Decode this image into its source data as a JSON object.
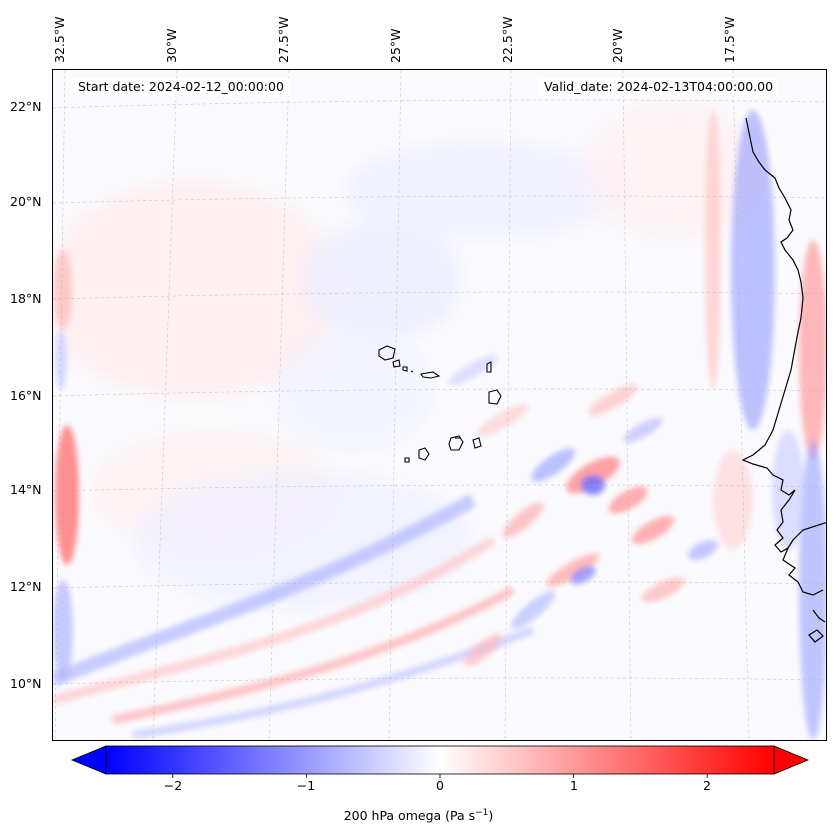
{
  "header": {
    "start_date": "Start date: 2024-02-12_00:00:00",
    "valid_date": "Valid_date: 2024-02-13T04:00:00.00"
  },
  "map": {
    "lon_labels": [
      "32.5°W",
      "30°W",
      "27.5°W",
      "25°W",
      "22.5°W",
      "20°W",
      "17.5°W"
    ],
    "lat_labels": [
      "22°N",
      "20°N",
      "18°N",
      "16°N",
      "14°N",
      "12°N",
      "10°N"
    ],
    "coastline_color": "#000000",
    "gridline_color": "#b0b0b0"
  },
  "colorbar": {
    "label_main": "200 hPa omega (Pa s",
    "label_sup": "−1",
    "label_end": ")",
    "ticks": [
      "−2",
      "−1",
      "0",
      "1",
      "2"
    ],
    "tick_values": [
      -2,
      -1,
      0,
      1,
      2
    ],
    "vmin": -2.5,
    "vmax": 2.5,
    "colormap": "bwr",
    "neg_color": "#0000ff",
    "mid_color": "#ffffff",
    "pos_color": "#ff0000",
    "extend": "both"
  }
}
